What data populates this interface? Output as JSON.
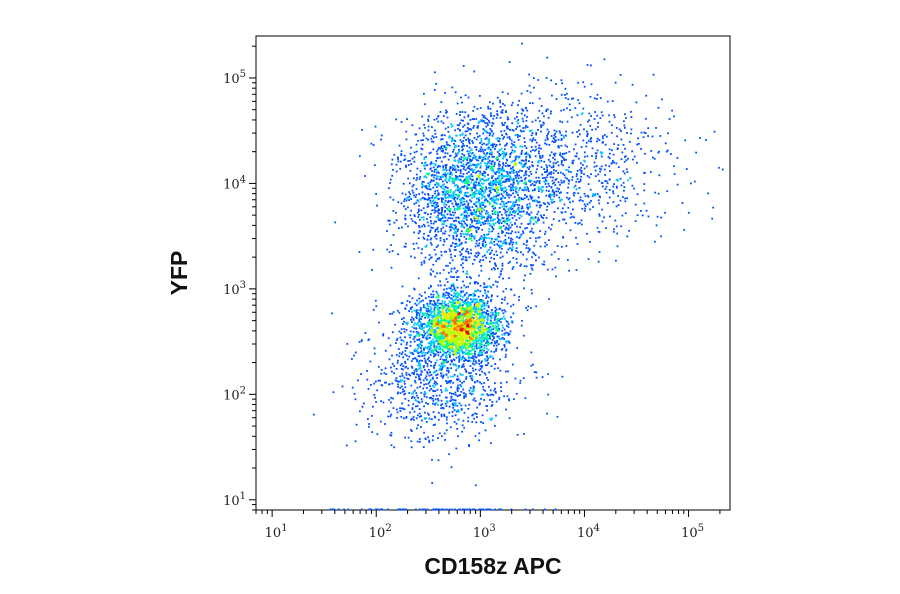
{
  "chart_data": {
    "type": "scatter",
    "subtype": "flow-cytometry density dot plot",
    "title": "",
    "xlabel": "CD158z APC",
    "ylabel": "YFP",
    "x_scale": "log",
    "y_scale": "log",
    "xlim": [
      7,
      250000
    ],
    "ylim": [
      8,
      250000
    ],
    "x_ticks": [
      {
        "value": 10,
        "base": "10",
        "exp": "1"
      },
      {
        "value": 100,
        "base": "10",
        "exp": "2"
      },
      {
        "value": 1000,
        "base": "10",
        "exp": "3"
      },
      {
        "value": 10000,
        "base": "10",
        "exp": "4"
      },
      {
        "value": 100000,
        "base": "10",
        "exp": "5"
      }
    ],
    "y_ticks": [
      {
        "value": 10,
        "base": "10",
        "exp": "1"
      },
      {
        "value": 100,
        "base": "10",
        "exp": "2"
      },
      {
        "value": 1000,
        "base": "10",
        "exp": "3"
      },
      {
        "value": 10000,
        "base": "10",
        "exp": "4"
      },
      {
        "value": 100000,
        "base": "10",
        "exp": "5"
      }
    ],
    "grid": false,
    "legend": "none",
    "colormap": [
      "#0000c8",
      "#0050ff",
      "#00c8ff",
      "#00ff80",
      "#b4ff00",
      "#ffe000",
      "#ff7000",
      "#e00000"
    ],
    "populations": [
      {
        "center": [
          600,
          450
        ],
        "spread_decades": [
          0.2,
          0.16
        ],
        "density": "highest"
      },
      {
        "center": [
          900,
          8000
        ],
        "spread_decades": [
          0.35,
          0.38
        ],
        "density": "medium"
      },
      {
        "center": [
          5000,
          15000
        ],
        "spread_decades": [
          0.55,
          0.4
        ],
        "density": "low"
      },
      {
        "center": [
          400,
          150
        ],
        "spread_decades": [
          0.35,
          0.3
        ],
        "density": "low"
      }
    ]
  }
}
